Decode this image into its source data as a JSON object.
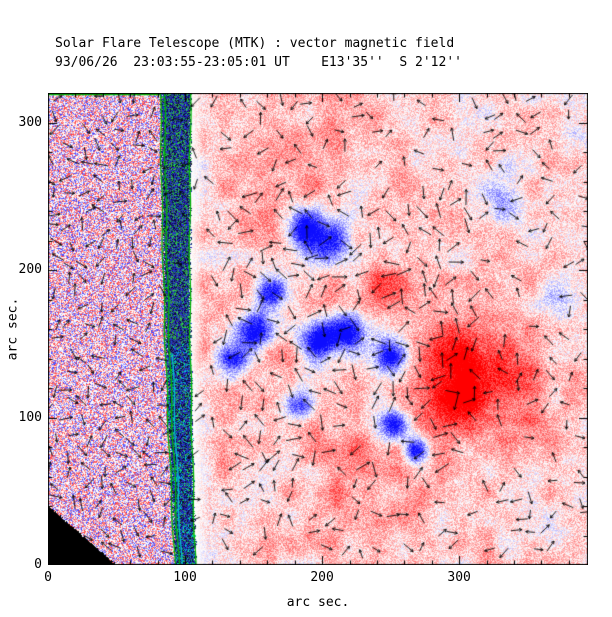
{
  "chart_data": {
    "type": "heatmap",
    "title": "Solar Flare Telescope (MTK) : vector magnetic field",
    "subtitle": "93/06/26  23:03:55-23:05:01 UT    E13'35''  S 2'12''",
    "xlabel": "arc sec.",
    "ylabel": "arc sec.",
    "xlim": [
      0,
      394
    ],
    "ylim": [
      0,
      320
    ],
    "xticks": [
      0,
      100,
      200,
      300
    ],
    "yticks": [
      0,
      100,
      200,
      300
    ],
    "minor_tick_step": 20,
    "grid": false,
    "legend": "none",
    "colors": {
      "positive_field": "#ff2020",
      "negative_field": "#2020ff",
      "contour": "#00b400",
      "band_accent": "#00c8c8",
      "vectors": "#000000",
      "offdata": "#000000",
      "frame": "#000000",
      "background": "#ffffff"
    },
    "content": {
      "description": "Vector magnetogram: red = positive polarity, blue = negative polarity; short black arrows show transverse field direction; green contours mark the solar limb; area left of the limb is uncorrelated speckle noise; black wedge at lower-left is outside the field of view.",
      "limb": {
        "x_top_arcsec": 93,
        "x_bottom_arcsec": 100,
        "band_halfwidth_top": 11,
        "band_halfwidth_bottom": 7.5
      },
      "corner": {
        "width_arcsec": 51,
        "height_arcsec": 41
      },
      "negative_patches_arcsec": [
        {
          "x": 204,
          "y": 219,
          "r": 12,
          "s": 1.0
        },
        {
          "x": 186,
          "y": 228,
          "r": 8,
          "s": 0.8
        },
        {
          "x": 151,
          "y": 159,
          "r": 9,
          "s": 0.85
        },
        {
          "x": 134,
          "y": 139,
          "r": 8,
          "s": 0.7
        },
        {
          "x": 162,
          "y": 186,
          "r": 8,
          "s": 0.8
        },
        {
          "x": 198,
          "y": 153,
          "r": 10,
          "s": 0.9
        },
        {
          "x": 220,
          "y": 159,
          "r": 9,
          "s": 0.85
        },
        {
          "x": 250,
          "y": 142,
          "r": 8,
          "s": 0.8
        },
        {
          "x": 184,
          "y": 108,
          "r": 7,
          "s": 0.6
        },
        {
          "x": 253,
          "y": 95,
          "r": 8,
          "s": 0.8
        },
        {
          "x": 268,
          "y": 78,
          "r": 6,
          "s": 0.7
        },
        {
          "x": 330,
          "y": 247,
          "r": 12,
          "s": 0.3
        },
        {
          "x": 370,
          "y": 180,
          "r": 8,
          "s": 0.25
        }
      ],
      "positive_patches_arcsec": [
        {
          "x": 300,
          "y": 125,
          "r": 24,
          "s": 1.0
        },
        {
          "x": 250,
          "y": 186,
          "r": 12,
          "s": 0.5
        },
        {
          "x": 206,
          "y": 213,
          "r": 15,
          "s": 0.4
        },
        {
          "x": 184,
          "y": 281,
          "r": 30,
          "s": 0.25
        },
        {
          "x": 344,
          "y": 125,
          "r": 30,
          "s": 0.3
        },
        {
          "x": 230,
          "y": 60,
          "r": 30,
          "s": 0.3
        },
        {
          "x": 160,
          "y": 150,
          "r": 40,
          "s": 0.2
        }
      ]
    }
  }
}
